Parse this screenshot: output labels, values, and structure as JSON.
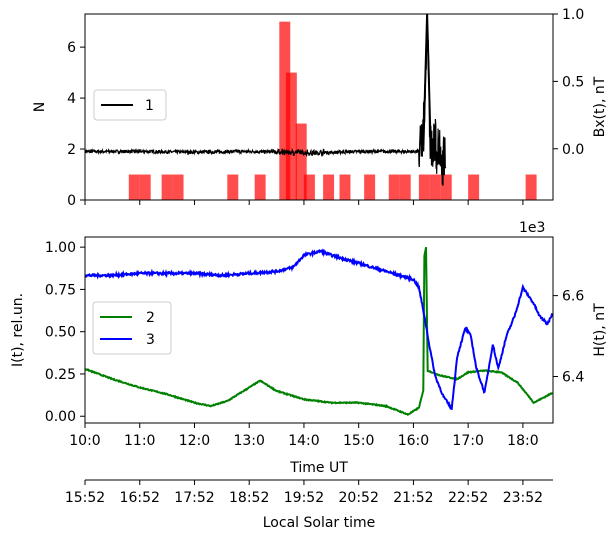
{
  "figure": {
    "top_panel": {
      "ylabel_left": "N",
      "ylabel_right": "Bx(t), nT",
      "left_yticks": [
        0,
        2,
        4,
        6
      ],
      "right_yticks": [
        "0.0",
        "0.5",
        "1.0"
      ],
      "left_ylim": [
        0,
        7.3
      ],
      "right_ylim": [
        -0.38,
        1.0
      ],
      "legend": [
        {
          "label": "1",
          "color": "#000000"
        }
      ]
    },
    "bottom_panel": {
      "ylabel_left": "I(t), rel.un.",
      "ylabel_right": "H(t), nT",
      "offset_text": "1e3",
      "left_yticks": [
        "0.00",
        "0.25",
        "0.50",
        "0.75",
        "1.00"
      ],
      "right_yticks": [
        "6.4",
        "6.6"
      ],
      "left_ylim": [
        -0.04,
        1.06
      ],
      "right_ylim": [
        6.285,
        6.745
      ],
      "legend": [
        {
          "label": "2",
          "color": "#008000"
        },
        {
          "label": "3",
          "color": "#0000ff"
        }
      ]
    },
    "x_axis": {
      "label": "Time UT",
      "ticks": [
        "10:0",
        "11:0",
        "12:0",
        "13:0",
        "14:0",
        "15:0",
        "16:0",
        "17:0",
        "18:0"
      ],
      "xlim": [
        10.0,
        18.55
      ]
    },
    "secondary_x_axis": {
      "label": "Local Solar time",
      "ticks": [
        "15:52",
        "16:52",
        "17:52",
        "18:52",
        "19:52",
        "20:52",
        "21:52",
        "22:52",
        "23:52"
      ]
    },
    "colors": {
      "bars": "#ff0000",
      "series1": "#000000",
      "series2": "#008000",
      "series3": "#0000ff"
    }
  },
  "chart_data": [
    {
      "type": "bar",
      "panel": "top",
      "series": [
        {
          "name": "",
          "axis": "left",
          "bin_width_h": 0.2,
          "bars": [
            {
              "x": 10.8,
              "n": 1
            },
            {
              "x": 11.0,
              "n": 1
            },
            {
              "x": 11.4,
              "n": 1
            },
            {
              "x": 11.6,
              "n": 1
            },
            {
              "x": 12.6,
              "n": 1
            },
            {
              "x": 13.1,
              "n": 1
            },
            {
              "x": 13.55,
              "n": 7
            },
            {
              "x": 13.67,
              "n": 5
            },
            {
              "x": 13.85,
              "n": 3
            },
            {
              "x": 14.0,
              "n": 1
            },
            {
              "x": 14.35,
              "n": 1
            },
            {
              "x": 14.65,
              "n": 1
            },
            {
              "x": 15.1,
              "n": 1
            },
            {
              "x": 15.55,
              "n": 1
            },
            {
              "x": 15.75,
              "n": 1
            },
            {
              "x": 16.1,
              "n": 1
            },
            {
              "x": 16.3,
              "n": 1
            },
            {
              "x": 16.5,
              "n": 1
            },
            {
              "x": 17.0,
              "n": 1
            },
            {
              "x": 18.05,
              "n": 1
            }
          ]
        }
      ]
    },
    {
      "type": "line",
      "panel": "top",
      "series": [
        {
          "name": "1",
          "axis": "right",
          "noise": 0.012,
          "x": [
            10.0,
            11.0,
            12.0,
            13.0,
            13.7,
            14.2,
            15.0,
            16.0,
            16.15,
            16.2,
            16.25,
            16.3,
            16.35,
            16.4,
            16.5,
            16.6
          ],
          "y": [
            -0.02,
            -0.02,
            -0.025,
            -0.02,
            -0.025,
            -0.03,
            -0.02,
            -0.02,
            -0.02,
            0.3,
            1.0,
            0.1,
            -0.05,
            0.05,
            -0.1,
            -0.05
          ],
          "burst_x": [
            16.1,
            16.6
          ],
          "burst_amp": 0.2
        }
      ]
    },
    {
      "type": "line",
      "panel": "bottom",
      "series": [
        {
          "name": "2",
          "axis": "left",
          "x": [
            10.0,
            10.5,
            11.0,
            11.5,
            12.0,
            12.3,
            12.6,
            12.9,
            13.2,
            13.5,
            14.0,
            14.5,
            15.0,
            15.5,
            15.9,
            16.1,
            16.18,
            16.2,
            16.23,
            16.26,
            16.5,
            16.8,
            17.0,
            17.3,
            17.6,
            17.9,
            18.2,
            18.55
          ],
          "y": [
            0.28,
            0.22,
            0.17,
            0.13,
            0.08,
            0.06,
            0.09,
            0.15,
            0.21,
            0.15,
            0.1,
            0.08,
            0.08,
            0.06,
            0.01,
            0.05,
            0.15,
            0.95,
            1.0,
            0.27,
            0.24,
            0.22,
            0.26,
            0.27,
            0.26,
            0.2,
            0.08,
            0.14
          ]
        },
        {
          "name": "3",
          "axis": "right",
          "x": [
            10.0,
            10.5,
            11.0,
            11.5,
            12.0,
            12.5,
            13.0,
            13.5,
            13.8,
            14.0,
            14.3,
            14.5,
            15.0,
            15.5,
            16.0,
            16.1,
            16.2,
            16.3,
            16.4,
            16.55,
            16.7,
            16.8,
            16.95,
            17.05,
            17.15,
            17.3,
            17.45,
            17.55,
            17.7,
            17.85,
            18.0,
            18.1,
            18.2,
            18.3,
            18.45,
            18.55
          ],
          "y": [
            6.65,
            6.65,
            6.655,
            6.655,
            6.655,
            6.65,
            6.655,
            6.66,
            6.67,
            6.7,
            6.71,
            6.7,
            6.68,
            6.66,
            6.64,
            6.62,
            6.55,
            6.47,
            6.4,
            6.35,
            6.32,
            6.45,
            6.52,
            6.5,
            6.42,
            6.36,
            6.48,
            6.42,
            6.5,
            6.55,
            6.62,
            6.6,
            6.58,
            6.55,
            6.53,
            6.56
          ]
        }
      ]
    }
  ]
}
